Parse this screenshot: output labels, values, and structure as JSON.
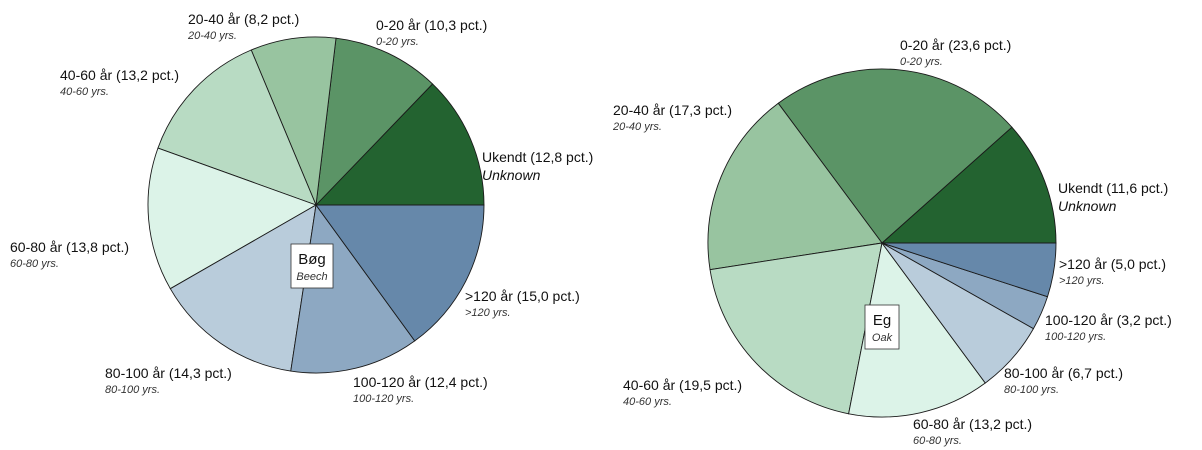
{
  "chart_data": [
    {
      "type": "pie",
      "center_label": {
        "title": "Bøg",
        "subtitle": "Beech"
      },
      "series": [
        {
          "main": "Ukendt (12,8 pct.)",
          "sub": "Unknown",
          "value": 12.8,
          "color": "#236330"
        },
        {
          "main": "0-20 år (10,3 pct.)",
          "sub": "0-20 yrs.",
          "value": 10.3,
          "color": "#5b9466"
        },
        {
          "main": "20-40 år (8,2 pct.)",
          "sub": "20-40 yrs.",
          "value": 8.2,
          "color": "#98c4a0"
        },
        {
          "main": "40-60 år (13,2 pct.)",
          "sub": "40-60 yrs.",
          "value": 13.2,
          "color": "#b8dbc3"
        },
        {
          "main": "60-80 år (13,8 pct.)",
          "sub": "60-80 yrs.",
          "value": 13.8,
          "color": "#dcf3e8"
        },
        {
          "main": "80-100 år (14,3 pct.)",
          "sub": "80-100 yrs.",
          "value": 14.3,
          "color": "#b9ccdb"
        },
        {
          "main": "100-120 år (12,4 pct.)",
          "sub": "100-120 yrs.",
          "value": 12.4,
          "color": "#8da8c2"
        },
        {
          "main": ">120 år (15,0 pct.)",
          "sub": ">120 yrs.",
          "value": 15.0,
          "color": "#6688aa"
        }
      ]
    },
    {
      "type": "pie",
      "center_label": {
        "title": "Eg",
        "subtitle": "Oak"
      },
      "series": [
        {
          "main": "Ukendt (11,6 pct.)",
          "sub": "Unknown",
          "value": 11.6,
          "color": "#236330"
        },
        {
          "main": "0-20 år (23,6 pct.)",
          "sub": "0-20 yrs.",
          "value": 23.6,
          "color": "#5b9466"
        },
        {
          "main": "20-40 år (17,3 pct.)",
          "sub": "20-40 yrs.",
          "value": 17.3,
          "color": "#98c4a0"
        },
        {
          "main": "40-60 år (19,5 pct.)",
          "sub": "40-60 yrs.",
          "value": 19.5,
          "color": "#b8dbc3"
        },
        {
          "main": "60-80 år (13,2 pct.)",
          "sub": "60-80 yrs.",
          "value": 13.2,
          "color": "#dcf3e8"
        },
        {
          "main": "80-100 år (6,7 pct.)",
          "sub": "80-100 yrs.",
          "value": 6.7,
          "color": "#b9ccdb"
        },
        {
          "main": "100-120 år (3,2 pct.)",
          "sub": "100-120 yrs.",
          "value": 3.2,
          "color": "#8da8c2"
        },
        {
          "main": ">120 år (5,0 pct.)",
          "sub": ">120 yrs.",
          "value": 5.0,
          "color": "#6688aa"
        }
      ]
    }
  ]
}
